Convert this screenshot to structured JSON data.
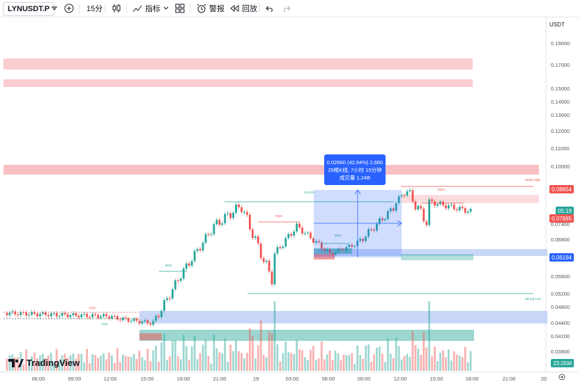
{
  "toolbar": {
    "symbol": "LYNUSDT.P",
    "interval": "15分",
    "indicators_label": "指标",
    "alert_label": "警报",
    "replay_label": "回放"
  },
  "price_axis": {
    "currency": "USDT",
    "labels": [
      "0.19000",
      "0.17000",
      "0.15000",
      "0.14000",
      "0.13000",
      "0.12000",
      "0.11000",
      "0.10000",
      "0.06800",
      "0.05600",
      "0.05200",
      "0.04800",
      "0.04400",
      "0.04100",
      "0.03800"
    ],
    "tags": {
      "upper": "0.08854",
      "timer": "05:19",
      "current": "0.07885",
      "lower": "0.06194",
      "volume": "23.05M"
    },
    "partial": "0.07400"
  },
  "time_axis": [
    "06:00",
    "09:00",
    "12:00",
    "15:00",
    "18:00",
    "21:00",
    "19",
    "03:00",
    "06:00",
    "09:00",
    "12:00",
    "15:00",
    "18:00",
    "21:00",
    "20"
  ],
  "measure_tooltip": {
    "line1": "0.02660 (42.94%) 2,660",
    "line2": "29根K线, 7小时 15分钟",
    "line3": "成交量 1.24B"
  },
  "annotations": {
    "choch": "CHoCH",
    "eqh": "EQH",
    "eql": "EQL",
    "bos": "BOS",
    "strong_low": "Strong Low",
    "weak_high": "Weak High"
  },
  "brand": {
    "name": "TradingView"
  },
  "colors": {
    "up": "#26a69a",
    "down": "#ef5350",
    "accent": "#2962ff",
    "supply_zone": "#f8b9bd",
    "demand_zone": "#b2c6f5",
    "teal_zone": "#26a69a"
  }
}
